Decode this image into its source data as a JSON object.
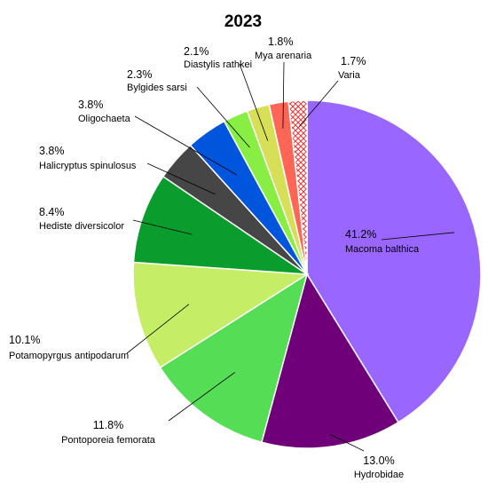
{
  "chart_data": {
    "type": "pie",
    "title": "2023",
    "slices": [
      {
        "label": "Macoma balthica",
        "value": 41.2,
        "value_label": "41.2%",
        "color": "#9966ff"
      },
      {
        "label": "Hydrobidae",
        "value": 13.0,
        "value_label": "13.0%",
        "color": "#70007a"
      },
      {
        "label": "Pontoporeia femorata",
        "value": 11.8,
        "value_label": "11.8%",
        "color": "#55dd55"
      },
      {
        "label": "Potamopyrgus antipodarum",
        "value": 10.1,
        "value_label": "10.1%",
        "color": "#c5ee66"
      },
      {
        "label": "Hediste diversicolor",
        "value": 8.4,
        "value_label": "8.4%",
        "color": "#0a9d2e"
      },
      {
        "label": "Halicryptus spinulosus",
        "value": 3.8,
        "value_label": "3.8%",
        "color": "#464646"
      },
      {
        "label": "Oligochaeta",
        "value": 3.8,
        "value_label": "3.8%",
        "color": "#0055dd"
      },
      {
        "label": "Bylgides sarsi",
        "value": 2.3,
        "value_label": "2.3%",
        "color": "#88ee44"
      },
      {
        "label": "Diastylis rathkei",
        "value": 2.1,
        "value_label": "2.1%",
        "color": "#d6df55"
      },
      {
        "label": "Mya arenaria",
        "value": 1.8,
        "value_label": "1.8%",
        "color": "#ff6655"
      },
      {
        "label": "Varia",
        "value": 1.7,
        "value_label": "1.7%",
        "color": "#ee3333",
        "pattern": "crosshatch"
      }
    ]
  }
}
